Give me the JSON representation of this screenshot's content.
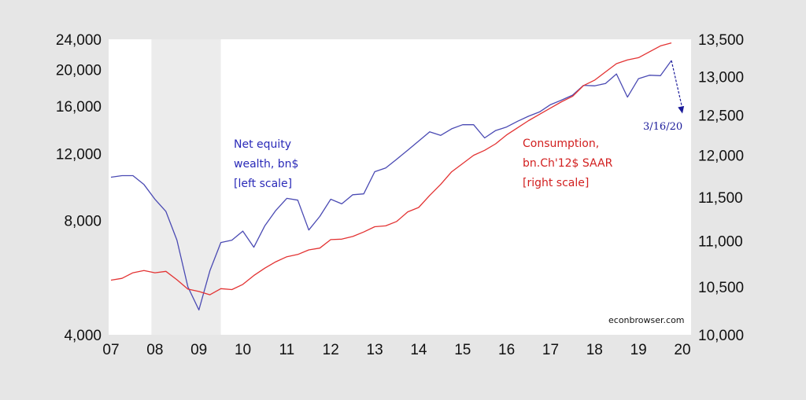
{
  "chart_data": {
    "type": "line",
    "title": "",
    "xlabel": "",
    "ylabel": "",
    "x_ticks": [
      "07",
      "08",
      "09",
      "10",
      "11",
      "12",
      "13",
      "14",
      "15",
      "16",
      "17",
      "18",
      "19",
      "20"
    ],
    "y_left": {
      "scale": "log",
      "range": [
        4000,
        24000
      ],
      "ticks": [
        4000,
        8000,
        12000,
        16000,
        20000,
        24000
      ],
      "tick_labels": [
        "4,000",
        "8,000",
        "12,000",
        "16,000",
        "20,000",
        "24,000"
      ]
    },
    "y_right": {
      "scale": "log",
      "range": [
        10000,
        13500
      ],
      "ticks": [
        10000,
        10500,
        11000,
        11500,
        12000,
        12500,
        13000,
        13500
      ],
      "tick_labels": [
        "10,000",
        "10,500",
        "11,000",
        "11,500",
        "12,000",
        "12,500",
        "13,000",
        "13,500"
      ]
    },
    "recession_shading": {
      "start": 2007.92,
      "end": 2009.5
    },
    "grid": false,
    "series": [
      {
        "name": "Net equity wealth, bn$",
        "axis": "left",
        "color": "#4a4ab3",
        "points": [
          [
            2007.0,
            10400
          ],
          [
            2007.25,
            10500
          ],
          [
            2007.5,
            10500
          ],
          [
            2007.75,
            9950
          ],
          [
            2008.0,
            9100
          ],
          [
            2008.25,
            8450
          ],
          [
            2008.5,
            7100
          ],
          [
            2008.75,
            5350
          ],
          [
            2009.0,
            4650
          ],
          [
            2009.25,
            5900
          ],
          [
            2009.5,
            7000
          ],
          [
            2009.75,
            7100
          ],
          [
            2010.0,
            7500
          ],
          [
            2010.25,
            6800
          ],
          [
            2010.5,
            7750
          ],
          [
            2010.75,
            8500
          ],
          [
            2011.0,
            9150
          ],
          [
            2011.25,
            9050
          ],
          [
            2011.5,
            7550
          ],
          [
            2011.75,
            8200
          ],
          [
            2012.0,
            9100
          ],
          [
            2012.25,
            8850
          ],
          [
            2012.5,
            9350
          ],
          [
            2012.75,
            9400
          ],
          [
            2013.0,
            10750
          ],
          [
            2013.25,
            11000
          ],
          [
            2013.5,
            11600
          ],
          [
            2013.75,
            12250
          ],
          [
            2014.0,
            12950
          ],
          [
            2014.25,
            13700
          ],
          [
            2014.5,
            13400
          ],
          [
            2014.75,
            13950
          ],
          [
            2015.0,
            14300
          ],
          [
            2015.25,
            14300
          ],
          [
            2015.5,
            13200
          ],
          [
            2015.75,
            13800
          ],
          [
            2016.0,
            14100
          ],
          [
            2016.25,
            14600
          ],
          [
            2016.5,
            15050
          ],
          [
            2016.75,
            15450
          ],
          [
            2017.0,
            16150
          ],
          [
            2017.25,
            16600
          ],
          [
            2017.5,
            17100
          ],
          [
            2017.75,
            18150
          ],
          [
            2018.0,
            18100
          ],
          [
            2018.25,
            18350
          ],
          [
            2018.5,
            19450
          ],
          [
            2018.75,
            16900
          ],
          [
            2019.0,
            18900
          ],
          [
            2019.25,
            19300
          ],
          [
            2019.5,
            19250
          ],
          [
            2019.75,
            21100
          ]
        ]
      },
      {
        "name": "Consumption, bn.Ch'12$ SAAR",
        "axis": "right",
        "color": "#e33333",
        "points": [
          [
            2007.0,
            10570
          ],
          [
            2007.25,
            10590
          ],
          [
            2007.5,
            10650
          ],
          [
            2007.75,
            10675
          ],
          [
            2008.0,
            10650
          ],
          [
            2008.25,
            10665
          ],
          [
            2008.5,
            10575
          ],
          [
            2008.75,
            10475
          ],
          [
            2009.0,
            10450
          ],
          [
            2009.25,
            10415
          ],
          [
            2009.5,
            10480
          ],
          [
            2009.75,
            10470
          ],
          [
            2010.0,
            10525
          ],
          [
            2010.25,
            10620
          ],
          [
            2010.5,
            10700
          ],
          [
            2010.75,
            10770
          ],
          [
            2011.0,
            10825
          ],
          [
            2011.25,
            10850
          ],
          [
            2011.5,
            10900
          ],
          [
            2011.75,
            10920
          ],
          [
            2012.0,
            11015
          ],
          [
            2012.25,
            11020
          ],
          [
            2012.5,
            11050
          ],
          [
            2012.75,
            11100
          ],
          [
            2013.0,
            11160
          ],
          [
            2013.25,
            11170
          ],
          [
            2013.5,
            11220
          ],
          [
            2013.75,
            11330
          ],
          [
            2014.0,
            11380
          ],
          [
            2014.25,
            11520
          ],
          [
            2014.5,
            11650
          ],
          [
            2014.75,
            11800
          ],
          [
            2015.0,
            11900
          ],
          [
            2015.25,
            12000
          ],
          [
            2015.5,
            12060
          ],
          [
            2015.75,
            12140
          ],
          [
            2016.0,
            12250
          ],
          [
            2016.25,
            12340
          ],
          [
            2016.5,
            12430
          ],
          [
            2016.75,
            12510
          ],
          [
            2017.0,
            12590
          ],
          [
            2017.25,
            12670
          ],
          [
            2017.5,
            12740
          ],
          [
            2017.75,
            12880
          ],
          [
            2018.0,
            12950
          ],
          [
            2018.25,
            13060
          ],
          [
            2018.5,
            13170
          ],
          [
            2018.75,
            13220
          ],
          [
            2019.0,
            13250
          ],
          [
            2019.25,
            13330
          ],
          [
            2019.5,
            13410
          ],
          [
            2019.75,
            13450
          ]
        ]
      }
    ],
    "projection": {
      "axis": "left",
      "color": "#1a1a99",
      "style": "dashed-arrow",
      "from": [
        2019.75,
        21100
      ],
      "to": [
        2020.0,
        15300
      ],
      "label": "3/16/20"
    },
    "annotations": [
      {
        "series": 0,
        "lines": [
          "Net equity",
          "wealth, bn$",
          "[left scale]"
        ]
      },
      {
        "series": 1,
        "lines": [
          "Consumption,",
          "bn.Ch'12$ SAAR",
          "[right scale]"
        ]
      }
    ],
    "source": "econbrowser.com"
  }
}
